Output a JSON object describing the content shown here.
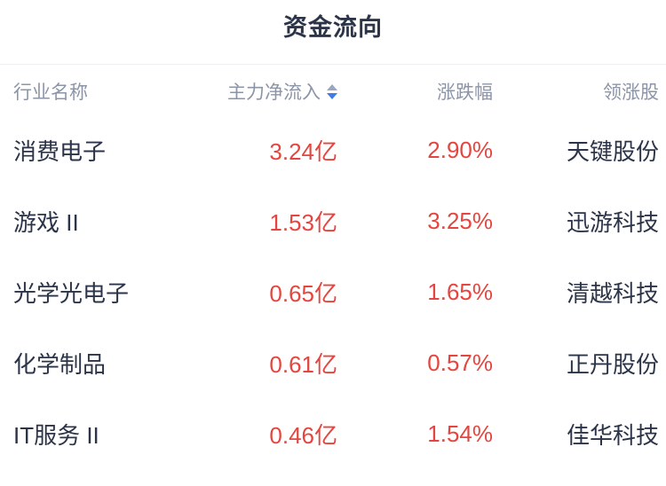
{
  "page": {
    "title": "资金流向"
  },
  "colors": {
    "text_dark": "#2b3448",
    "header_gray": "#8c94a8",
    "value_red": "#e5453f",
    "sort_arrow_inactive": "#9aa7bc",
    "sort_arrow_active": "#3e7ce8",
    "divider": "#edeff2"
  },
  "table": {
    "columns": {
      "industry": "行业名称",
      "net_inflow": "主力净流入",
      "change": "涨跌幅",
      "leading_stock": "领涨股"
    },
    "sort": {
      "column": "net_inflow",
      "direction": "desc",
      "icon": "sort-arrows-icon"
    },
    "rows": [
      {
        "industry": "消费电子",
        "net_inflow": "3.24亿",
        "change": "2.90%",
        "leading_stock": "天键股份"
      },
      {
        "industry": "游戏 II",
        "net_inflow": "1.53亿",
        "change": "3.25%",
        "leading_stock": "迅游科技"
      },
      {
        "industry": "光学光电子",
        "net_inflow": "0.65亿",
        "change": "1.65%",
        "leading_stock": "清越科技"
      },
      {
        "industry": "化学制品",
        "net_inflow": "0.61亿",
        "change": "0.57%",
        "leading_stock": "正丹股份"
      },
      {
        "industry": "IT服务 II",
        "net_inflow": "0.46亿",
        "change": "1.54%",
        "leading_stock": "佳华科技"
      }
    ]
  }
}
